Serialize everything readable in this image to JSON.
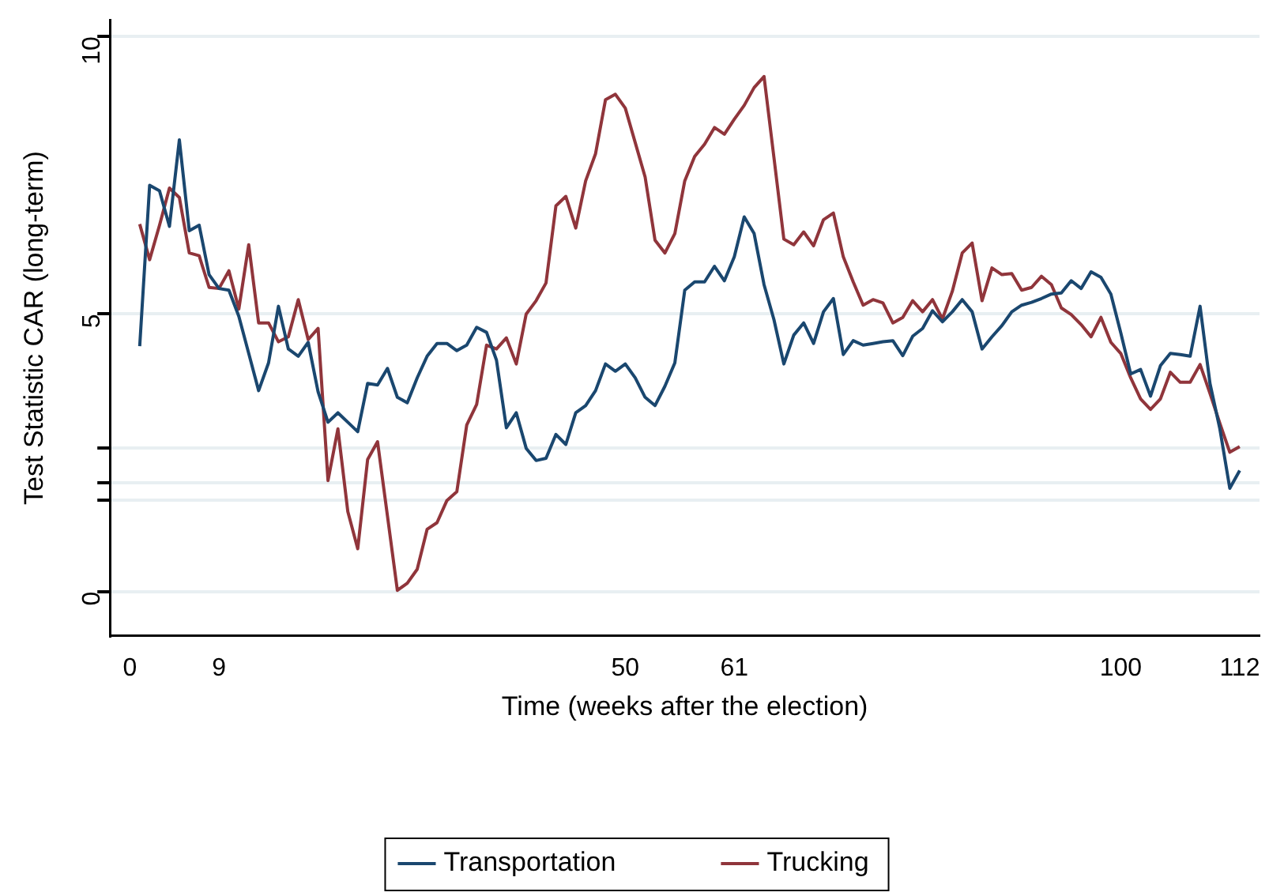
{
  "chart_data": {
    "type": "line",
    "xlabel": "Time (weeks after the election)",
    "ylabel": "Test Statistic CAR (long-term)",
    "x": [
      1,
      2,
      3,
      4,
      5,
      6,
      7,
      8,
      9,
      10,
      11,
      12,
      13,
      14,
      15,
      16,
      17,
      18,
      19,
      20,
      21,
      22,
      23,
      24,
      25,
      26,
      27,
      28,
      29,
      30,
      31,
      32,
      33,
      34,
      35,
      36,
      37,
      38,
      39,
      40,
      41,
      42,
      43,
      44,
      45,
      46,
      47,
      48,
      49,
      50,
      51,
      52,
      53,
      54,
      55,
      56,
      57,
      58,
      59,
      60,
      61,
      62,
      63,
      64,
      65,
      66,
      67,
      68,
      69,
      70,
      71,
      72,
      73,
      74,
      75,
      76,
      77,
      78,
      79,
      80,
      81,
      82,
      83,
      84,
      85,
      86,
      87,
      88,
      89,
      90,
      91,
      92,
      93,
      94,
      95,
      96,
      97,
      98,
      99,
      100,
      101,
      102,
      103,
      104,
      105,
      106,
      107,
      108,
      109,
      110,
      111,
      112
    ],
    "series": [
      {
        "name": "Transportation",
        "color": "#1a476f",
        "values": [
          4.42,
          7.32,
          7.22,
          6.58,
          8.14,
          6.5,
          6.6,
          5.71,
          5.46,
          5.43,
          4.96,
          4.29,
          3.62,
          4.12,
          5.14,
          4.37,
          4.24,
          4.49,
          3.6,
          3.05,
          3.22,
          3.05,
          2.88,
          3.75,
          3.72,
          4.02,
          3.5,
          3.4,
          3.85,
          4.24,
          4.47,
          4.47,
          4.34,
          4.44,
          4.76,
          4.67,
          4.17,
          2.95,
          3.22,
          2.58,
          2.36,
          2.4,
          2.83,
          2.65,
          3.22,
          3.35,
          3.62,
          4.1,
          3.97,
          4.1,
          3.85,
          3.5,
          3.35,
          3.7,
          4.12,
          5.43,
          5.58,
          5.58,
          5.86,
          5.6,
          6.03,
          6.75,
          6.45,
          5.53,
          4.9,
          4.1,
          4.62,
          4.84,
          4.47,
          5.04,
          5.28,
          4.27,
          4.52,
          4.44,
          4.47,
          4.5,
          4.52,
          4.25,
          4.6,
          4.74,
          5.06,
          4.86,
          5.04,
          5.26,
          5.04,
          4.37,
          4.59,
          4.79,
          5.04,
          5.16,
          5.21,
          5.28,
          5.36,
          5.38,
          5.6,
          5.46,
          5.76,
          5.66,
          5.36,
          4.66,
          3.92,
          4.0,
          3.52,
          4.07,
          4.29,
          4.27,
          4.24,
          5.14,
          3.75,
          2.93,
          1.86,
          2.18
        ]
      },
      {
        "name": "Trucking",
        "color": "#90353b",
        "values": [
          6.62,
          5.98,
          6.6,
          7.27,
          7.1,
          6.1,
          6.05,
          5.48,
          5.46,
          5.78,
          5.09,
          6.25,
          4.84,
          4.84,
          4.5,
          4.59,
          5.26,
          4.54,
          4.74,
          2.0,
          2.93,
          1.44,
          0.77,
          2.38,
          2.7,
          1.36,
          0.02,
          0.15,
          0.4,
          1.12,
          1.24,
          1.64,
          1.8,
          3.0,
          3.37,
          4.44,
          4.37,
          4.57,
          4.1,
          5.0,
          5.24,
          5.56,
          6.95,
          7.12,
          6.55,
          7.4,
          7.89,
          8.86,
          8.96,
          8.71,
          8.09,
          7.47,
          6.33,
          6.1,
          6.45,
          7.4,
          7.84,
          8.06,
          8.36,
          8.24,
          8.51,
          8.76,
          9.08,
          9.28,
          7.82,
          6.35,
          6.25,
          6.48,
          6.23,
          6.7,
          6.82,
          6.03,
          5.58,
          5.16,
          5.26,
          5.2,
          4.84,
          4.94,
          5.24,
          5.04,
          5.26,
          4.91,
          5.41,
          6.1,
          6.28,
          5.24,
          5.83,
          5.71,
          5.73,
          5.43,
          5.48,
          5.68,
          5.53,
          5.11,
          4.99,
          4.81,
          4.59,
          4.94,
          4.49,
          4.29,
          3.85,
          3.47,
          3.28,
          3.47,
          3.95,
          3.77,
          3.77,
          4.09,
          3.57,
          3.03,
          2.51,
          2.61
        ]
      }
    ],
    "xlim": [
      -2,
      114
    ],
    "xticks": [
      0,
      9,
      50,
      61,
      100,
      112
    ],
    "ylim": [
      -0.8,
      10.3
    ],
    "yticks": [
      0,
      {
        "value": 1.65,
        "label": null
      },
      {
        "value": 1.96,
        "label": null
      },
      {
        "value": 2.58,
        "label": null
      },
      5,
      10
    ],
    "grid": "y",
    "legend": "bottom",
    "marker": "none",
    "line_style": "solid"
  }
}
